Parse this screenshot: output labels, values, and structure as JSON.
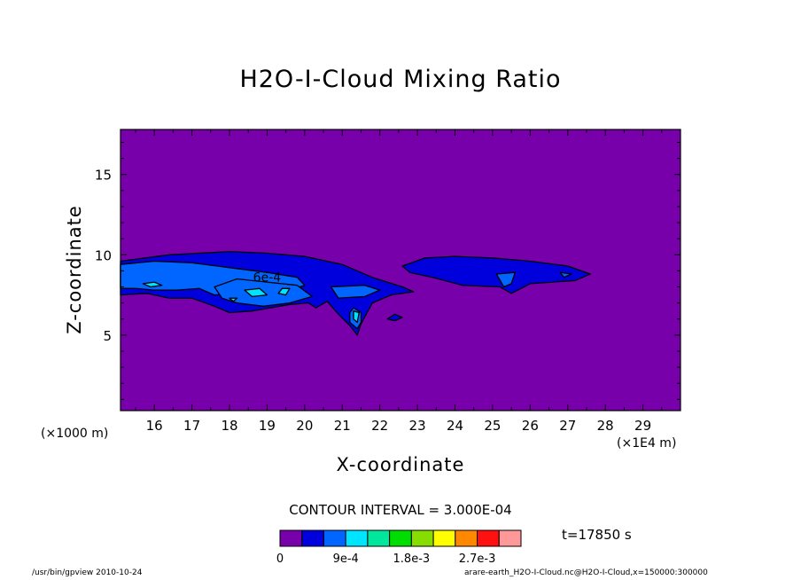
{
  "chart_data": {
    "type": "heatmap",
    "title": "H2O-I-Cloud Mixing Ratio",
    "xlabel": "X-coordinate",
    "ylabel": "Z-coordinate",
    "x_unit_left": "(×1000 m)",
    "x_unit_right": "(×1E4 m)",
    "xlim": [
      15.1,
      30.0
    ],
    "ylim": [
      0.3,
      17.8
    ],
    "x_ticks": [
      "16",
      "17",
      "18",
      "19",
      "20",
      "21",
      "22",
      "23",
      "24",
      "25",
      "26",
      "27",
      "28",
      "29"
    ],
    "y_ticks": [
      "5",
      "10",
      "15"
    ],
    "contour_interval": "CONTOUR INTERVAL = 3.000E-04",
    "contour_label": "6e-4",
    "time_label": "t=17850 s",
    "colorbar": {
      "colors": [
        "#7700aa",
        "#0000dd",
        "#0066ff",
        "#00e5ff",
        "#00e69a",
        "#00dd00",
        "#88dd00",
        "#ffff00",
        "#ff8800",
        "#ff1111",
        "#ff9999"
      ],
      "labels": [
        "0",
        "9e-4",
        "1.8e-3",
        "2.7e-3"
      ],
      "label_levels": [
        0,
        0.0009,
        0.0018,
        0.0027
      ]
    },
    "regions": [
      {
        "name": "layer-west-level1",
        "level": 0.0003,
        "points": [
          [
            15.1,
            9.6
          ],
          [
            16.4,
            10.0
          ],
          [
            18.0,
            10.2
          ],
          [
            19.0,
            10.1
          ],
          [
            20.0,
            9.9
          ],
          [
            21.0,
            9.4
          ],
          [
            21.8,
            8.6
          ],
          [
            22.6,
            8.0
          ],
          [
            22.9,
            7.7
          ],
          [
            22.3,
            7.5
          ],
          [
            21.8,
            7.0
          ],
          [
            21.5,
            5.7
          ],
          [
            21.4,
            5.0
          ],
          [
            21.2,
            5.6
          ],
          [
            20.9,
            6.3
          ],
          [
            20.6,
            7.1
          ],
          [
            20.3,
            6.7
          ],
          [
            20.1,
            7.0
          ],
          [
            19.6,
            6.9
          ],
          [
            18.6,
            6.5
          ],
          [
            18.0,
            6.4
          ],
          [
            17.6,
            6.8
          ],
          [
            17.0,
            7.3
          ],
          [
            16.4,
            7.3
          ],
          [
            15.8,
            7.6
          ],
          [
            15.1,
            7.5
          ]
        ]
      },
      {
        "name": "layer-east-level1",
        "level": 0.0003,
        "points": [
          [
            22.6,
            9.3
          ],
          [
            23.2,
            9.8
          ],
          [
            24.0,
            9.9
          ],
          [
            25.0,
            9.8
          ],
          [
            26.0,
            9.6
          ],
          [
            27.0,
            9.3
          ],
          [
            27.6,
            8.8
          ],
          [
            27.2,
            8.4
          ],
          [
            26.0,
            8.2
          ],
          [
            25.5,
            7.6
          ],
          [
            25.2,
            8.0
          ],
          [
            24.2,
            8.1
          ],
          [
            23.4,
            8.6
          ],
          [
            22.8,
            8.9
          ]
        ]
      },
      {
        "name": "blob-small-east",
        "level": 0.0003,
        "points": [
          [
            22.4,
            6.3
          ],
          [
            22.6,
            6.1
          ],
          [
            22.4,
            5.9
          ],
          [
            22.2,
            6.0
          ]
        ]
      },
      {
        "name": "layer-west-level2",
        "level": 0.0006,
        "points": [
          [
            15.1,
            9.4
          ],
          [
            16.0,
            9.6
          ],
          [
            17.0,
            9.5
          ],
          [
            18.0,
            9.2
          ],
          [
            19.0,
            8.9
          ],
          [
            19.8,
            8.6
          ],
          [
            20.0,
            8.1
          ],
          [
            19.6,
            7.8
          ],
          [
            18.8,
            7.8
          ],
          [
            18.0,
            7.6
          ],
          [
            17.6,
            7.5
          ],
          [
            17.2,
            7.9
          ],
          [
            16.6,
            7.8
          ],
          [
            16.0,
            7.8
          ],
          [
            15.5,
            7.9
          ],
          [
            15.1,
            7.9
          ]
        ]
      },
      {
        "name": "layer-west-level2b",
        "level": 0.0006,
        "points": [
          [
            17.6,
            8.0
          ],
          [
            18.2,
            8.5
          ],
          [
            19.0,
            8.3
          ],
          [
            19.8,
            8.1
          ],
          [
            20.2,
            7.4
          ],
          [
            19.6,
            7.0
          ],
          [
            18.9,
            6.8
          ],
          [
            18.2,
            7.0
          ],
          [
            17.8,
            7.3
          ]
        ]
      },
      {
        "name": "layer-mid-level2",
        "level": 0.0006,
        "points": [
          [
            20.7,
            8.0
          ],
          [
            21.6,
            8.1
          ],
          [
            22.0,
            7.8
          ],
          [
            21.6,
            7.4
          ],
          [
            20.9,
            7.3
          ]
        ]
      },
      {
        "name": "plume-level2",
        "level": 0.0006,
        "points": [
          [
            21.3,
            6.7
          ],
          [
            21.5,
            6.4
          ],
          [
            21.5,
            5.8
          ],
          [
            21.4,
            5.4
          ],
          [
            21.2,
            5.8
          ],
          [
            21.2,
            6.4
          ]
        ]
      },
      {
        "name": "east-level2",
        "level": 0.0006,
        "points": [
          [
            25.1,
            8.8
          ],
          [
            25.6,
            8.9
          ],
          [
            25.5,
            8.2
          ],
          [
            25.3,
            8.0
          ]
        ]
      },
      {
        "name": "east-small-level2",
        "level": 0.0006,
        "points": [
          [
            26.8,
            8.9
          ],
          [
            27.1,
            8.8
          ],
          [
            26.9,
            8.6
          ]
        ]
      },
      {
        "name": "core-1",
        "level": 0.0009,
        "points": [
          [
            15.7,
            8.2
          ],
          [
            16.0,
            8.3
          ],
          [
            16.2,
            8.1
          ],
          [
            15.9,
            8.0
          ]
        ]
      },
      {
        "name": "core-2",
        "level": 0.0009,
        "points": [
          [
            18.4,
            7.8
          ],
          [
            18.8,
            7.9
          ],
          [
            19.0,
            7.5
          ],
          [
            18.6,
            7.4
          ]
        ]
      },
      {
        "name": "core-3",
        "level": 0.0009,
        "points": [
          [
            18.0,
            7.3
          ],
          [
            18.2,
            7.3
          ],
          [
            18.1,
            7.1
          ]
        ]
      },
      {
        "name": "core-4",
        "level": 0.0009,
        "points": [
          [
            19.4,
            7.9
          ],
          [
            19.6,
            7.9
          ],
          [
            19.5,
            7.5
          ],
          [
            19.3,
            7.6
          ]
        ]
      },
      {
        "name": "core-5",
        "level": 0.0009,
        "points": [
          [
            21.3,
            6.5
          ],
          [
            21.45,
            6.4
          ],
          [
            21.4,
            5.8
          ],
          [
            21.3,
            6.0
          ]
        ]
      }
    ]
  },
  "footer": {
    "left": "/usr/bin/gpview   2010-10-24",
    "right": "arare-earth_H2O-I-Cloud.nc@H2O-I-Cloud,x=150000:300000"
  }
}
